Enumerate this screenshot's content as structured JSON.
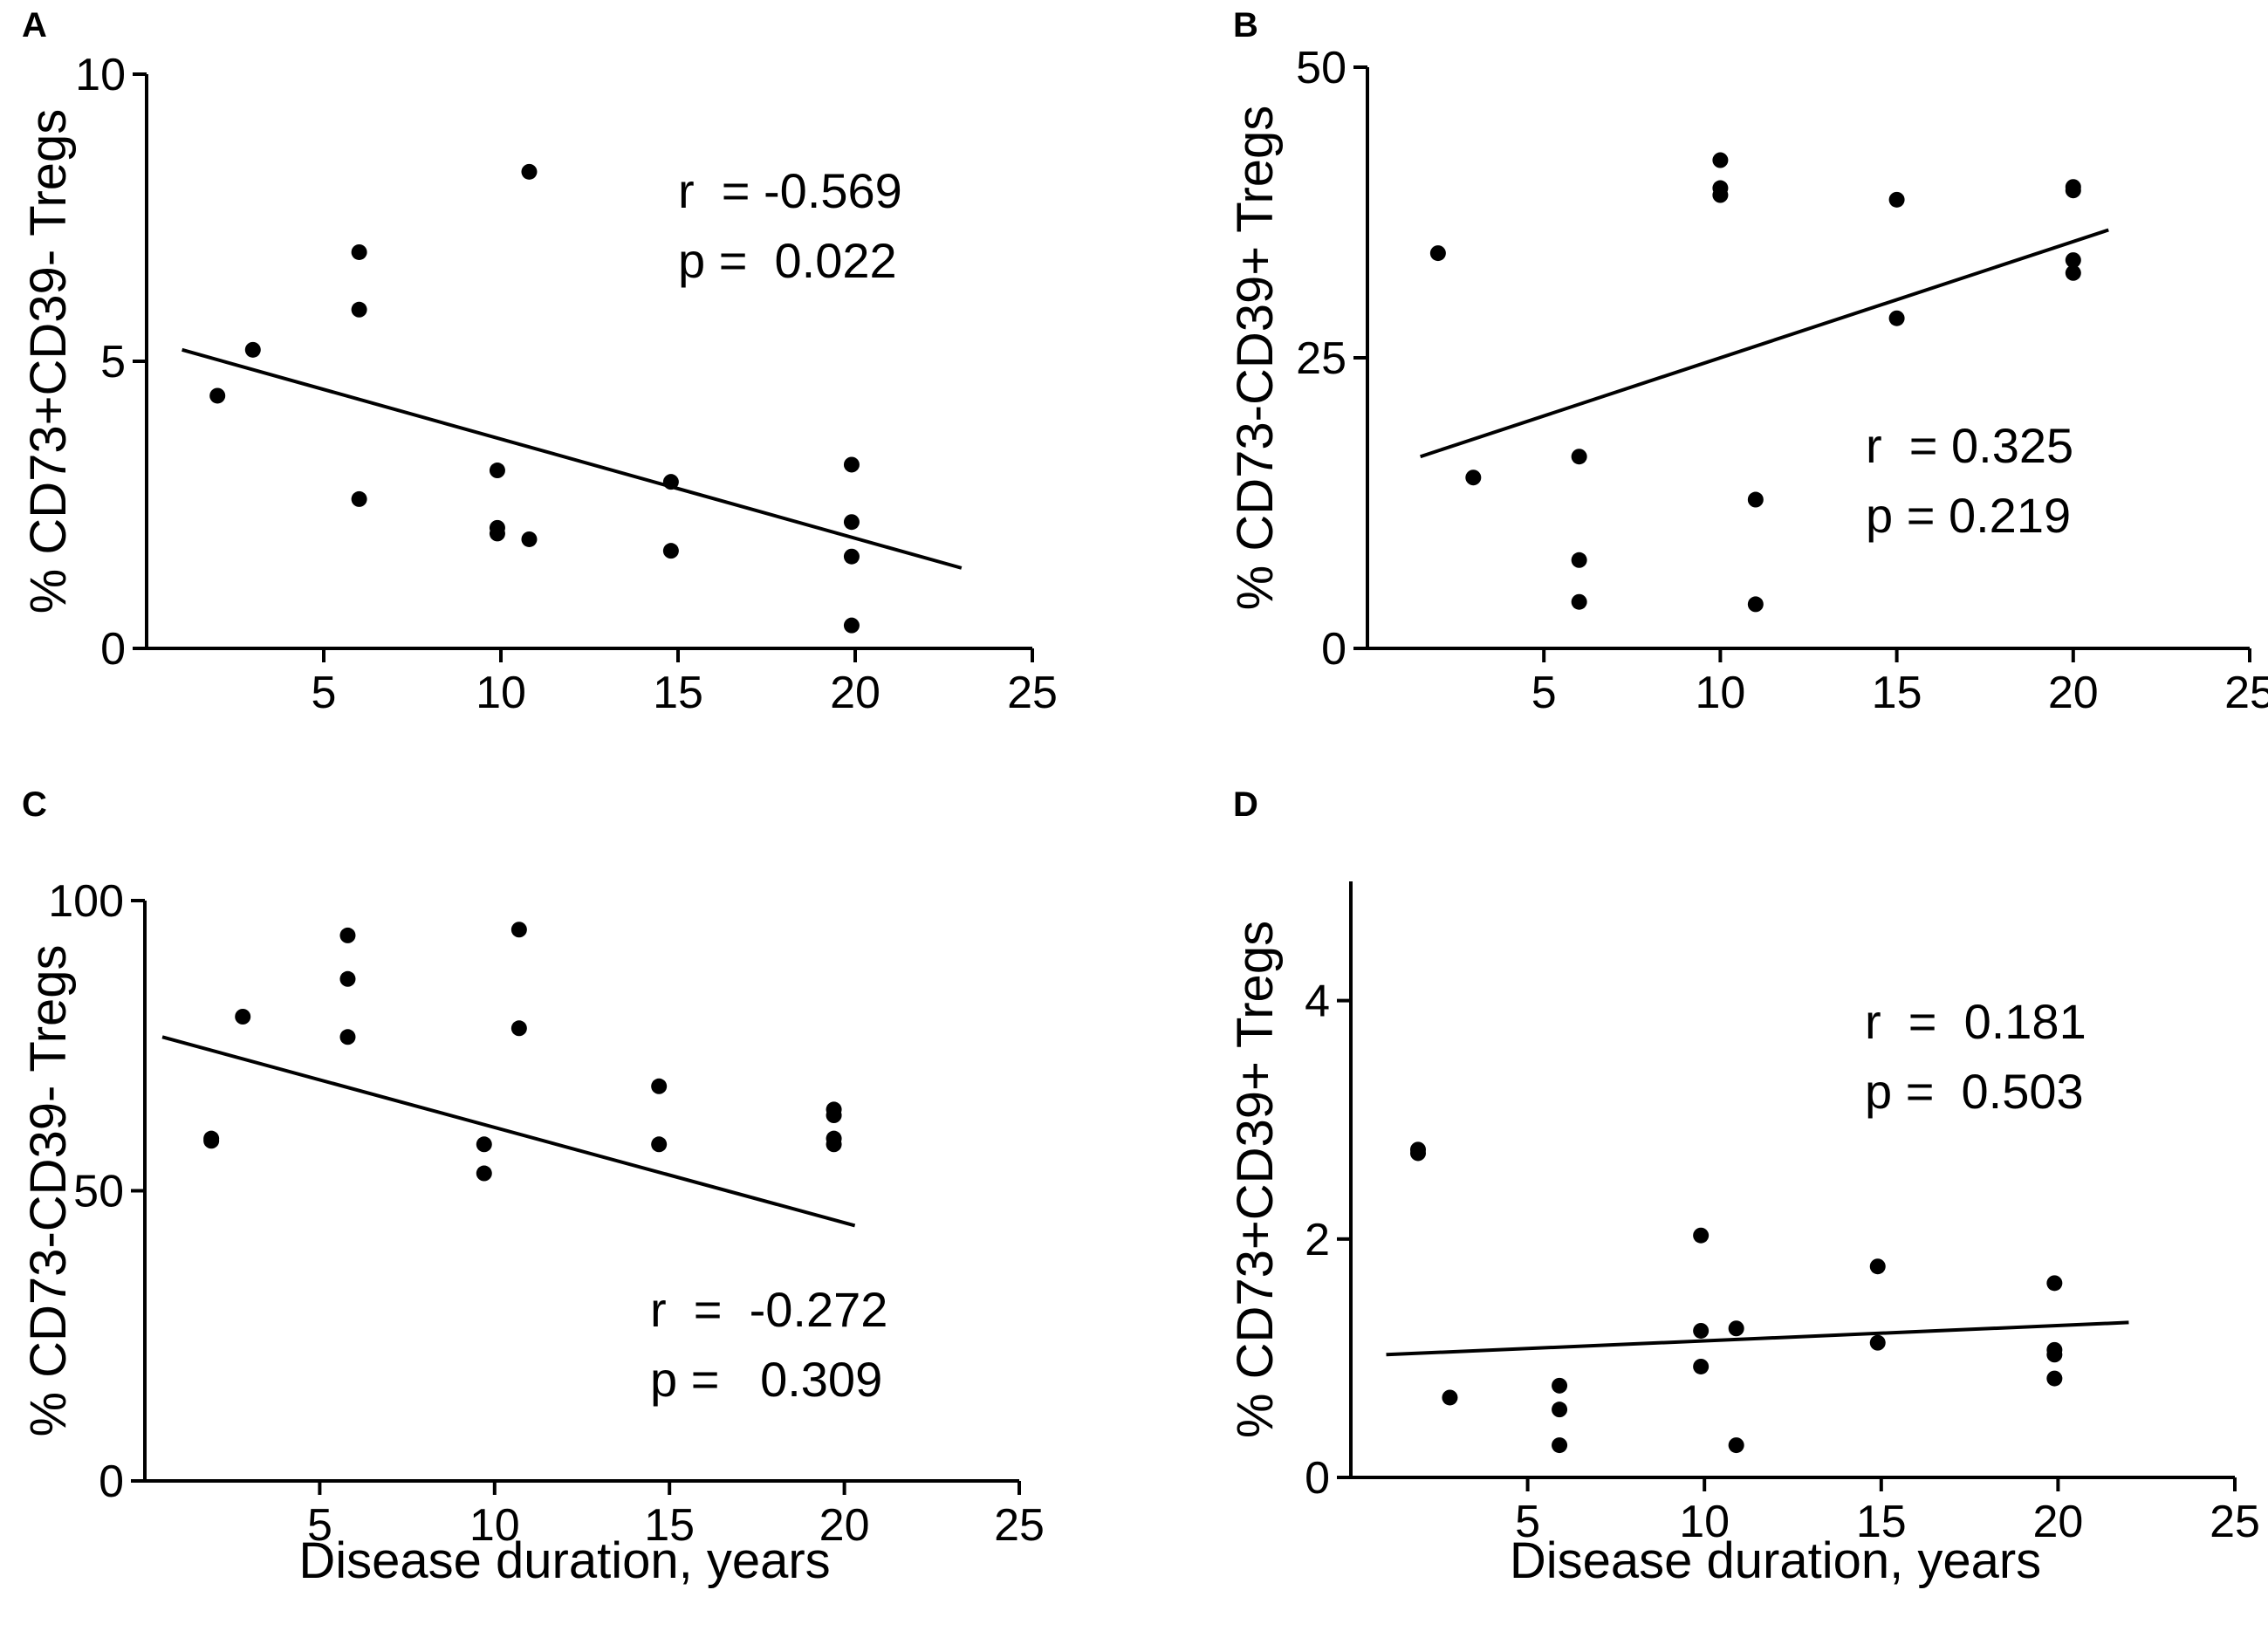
{
  "chart_data": [
    {
      "id": "A",
      "type": "scatter",
      "panel_label": "A",
      "ylabel": "% CD73+CD39- Tregs",
      "xlabel": "",
      "xlim": [
        0,
        25
      ],
      "ylim": [
        0,
        10
      ],
      "xticks": [
        5,
        10,
        15,
        20,
        25
      ],
      "yticks": [
        0,
        5,
        10
      ],
      "points": [
        [
          2,
          4.4
        ],
        [
          3,
          5.2
        ],
        [
          6,
          6.9
        ],
        [
          6,
          5.9
        ],
        [
          6,
          2.6
        ],
        [
          9.9,
          3.1
        ],
        [
          9.9,
          2.1
        ],
        [
          9.9,
          2.0
        ],
        [
          10.8,
          8.3
        ],
        [
          10.8,
          1.9
        ],
        [
          14.8,
          2.9
        ],
        [
          14.8,
          1.7
        ],
        [
          19.9,
          3.2
        ],
        [
          19.9,
          2.2
        ],
        [
          19.9,
          1.6
        ],
        [
          19.9,
          0.4
        ]
      ],
      "fit": [
        [
          1,
          5.2
        ],
        [
          23,
          1.4
        ]
      ],
      "stats": {
        "r": "r  = -0.569",
        "p": "p =  0.022"
      },
      "stats_position": "top-right"
    },
    {
      "id": "B",
      "type": "scatter",
      "panel_label": "B",
      "ylabel": "% CD73-CD39+ Tregs",
      "xlabel": "",
      "xlim": [
        0,
        25
      ],
      "ylim": [
        0,
        50
      ],
      "xticks": [
        5,
        10,
        15,
        20,
        25
      ],
      "yticks": [
        0,
        25,
        50
      ],
      "points": [
        [
          2,
          34
        ],
        [
          3,
          14.7
        ],
        [
          6,
          16.5
        ],
        [
          6,
          7.6
        ],
        [
          6,
          4
        ],
        [
          10,
          42
        ],
        [
          10,
          39.6
        ],
        [
          10,
          39
        ],
        [
          11,
          12.8
        ],
        [
          11,
          3.8
        ],
        [
          15,
          38.6
        ],
        [
          15,
          28.4
        ],
        [
          20,
          39.7
        ],
        [
          20,
          39.4
        ],
        [
          20,
          33.4
        ],
        [
          20,
          32.3
        ]
      ],
      "fit": [
        [
          1.5,
          16.5
        ],
        [
          21,
          36
        ]
      ],
      "stats": {
        "r": "r  = 0.325",
        "p": "p = 0.219"
      },
      "stats_position": "bottom-right"
    },
    {
      "id": "C",
      "type": "scatter",
      "panel_label": "C",
      "ylabel": "% CD73-CD39- Tregs",
      "xlabel": "Disease duration, years",
      "xlim": [
        0,
        25
      ],
      "ylim": [
        0,
        100
      ],
      "xticks": [
        5,
        10,
        15,
        20,
        25
      ],
      "yticks": [
        0,
        50,
        100
      ],
      "points": [
        [
          1.9,
          59
        ],
        [
          1.9,
          58.6
        ],
        [
          2.8,
          80
        ],
        [
          5.8,
          94
        ],
        [
          5.8,
          86.5
        ],
        [
          5.8,
          76.5
        ],
        [
          9.7,
          58
        ],
        [
          9.7,
          53
        ],
        [
          10.7,
          95
        ],
        [
          10.7,
          78
        ],
        [
          14.7,
          68
        ],
        [
          14.7,
          58
        ],
        [
          19.7,
          64
        ],
        [
          19.7,
          63
        ],
        [
          19.7,
          59
        ],
        [
          19.7,
          58
        ]
      ],
      "fit": [
        [
          0.5,
          76.5
        ],
        [
          20.3,
          44
        ]
      ],
      "stats": {
        "r": "r  =  -0.272",
        "p": "p =   0.309"
      },
      "stats_position": "bottom-right"
    },
    {
      "id": "D",
      "type": "scatter",
      "panel_label": "D",
      "ylabel": "% CD73+CD39+ Tregs",
      "xlabel": "Disease duration, years",
      "xlim": [
        0,
        25
      ],
      "ylim": [
        0,
        5
      ],
      "xticks": [
        5,
        10,
        15,
        20,
        25
      ],
      "yticks": [
        0,
        2,
        4
      ],
      "points": [
        [
          1.9,
          2.75
        ],
        [
          1.9,
          2.72
        ],
        [
          2.8,
          0.67
        ],
        [
          5.9,
          0.77
        ],
        [
          5.9,
          0.57
        ],
        [
          5.9,
          0.27
        ],
        [
          9.9,
          2.03
        ],
        [
          9.9,
          1.23
        ],
        [
          9.9,
          0.93
        ],
        [
          10.9,
          1.25
        ],
        [
          10.9,
          0.27
        ],
        [
          14.9,
          1.77
        ],
        [
          14.9,
          1.13
        ],
        [
          19.9,
          1.63
        ],
        [
          19.9,
          1.07
        ],
        [
          19.9,
          1.03
        ],
        [
          19.9,
          0.83
        ]
      ],
      "fit": [
        [
          1,
          1.03
        ],
        [
          22,
          1.3
        ]
      ],
      "stats": {
        "r": "r  =  0.181",
        "p": "p =  0.503"
      },
      "stats_position": "top-right"
    }
  ]
}
